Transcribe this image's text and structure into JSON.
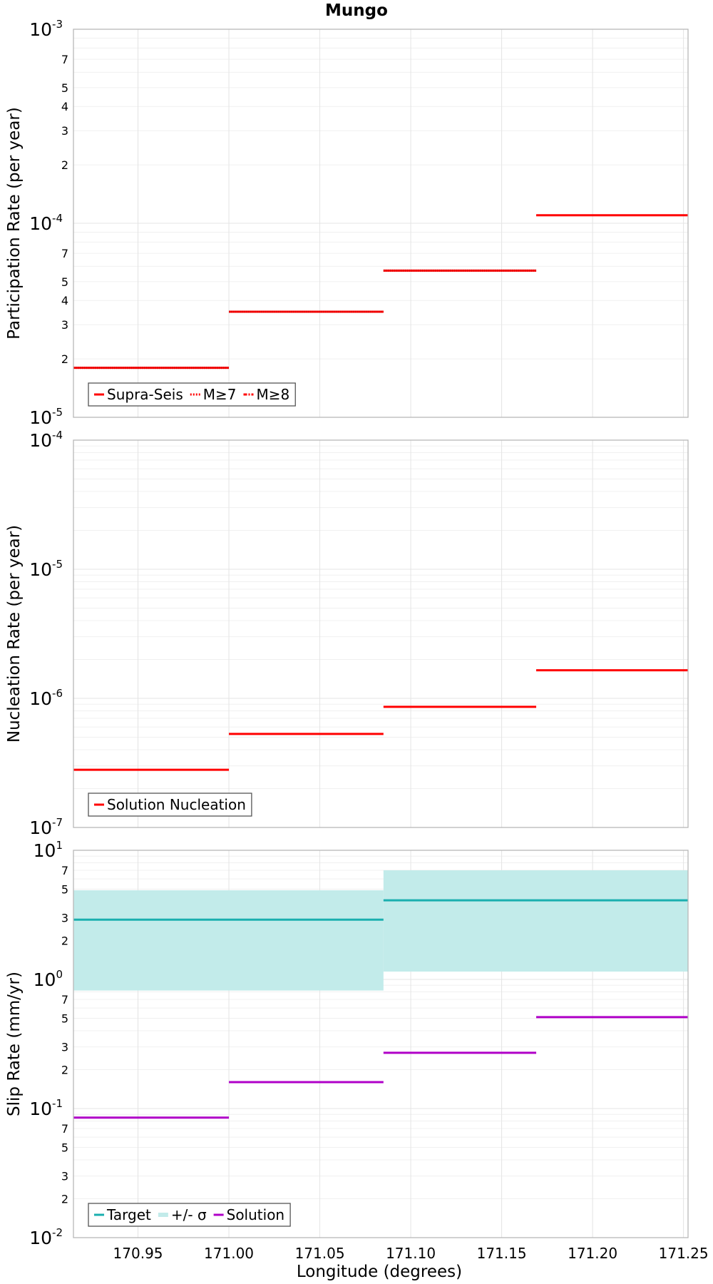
{
  "title": "Mungo",
  "xaxis": {
    "label": "Longitude (degrees)",
    "range": [
      170.9145,
      171.2525
    ],
    "ticks": [
      170.95,
      171.0,
      171.05,
      171.1,
      171.15,
      171.2,
      171.25
    ],
    "tick_labels": [
      "170.95",
      "171.00",
      "171.05",
      "171.10",
      "171.15",
      "171.20",
      "171.25"
    ]
  },
  "colors": {
    "supra_seis": "#ff0000",
    "nucleation": "#ff0000",
    "target": "#1aafaf",
    "sigma": "#c2ebea",
    "solution": "#b000c8",
    "grid": "#e4e4e4",
    "frame": "#b8b8b8"
  },
  "chart_data": [
    {
      "type": "line",
      "ylabel": "Participation Rate (per year)",
      "yscale": "log",
      "ylim": [
        1e-05,
        0.001
      ],
      "major_ticks": [
        {
          "base": "10",
          "exp": "-5",
          "value": 1e-05
        },
        {
          "base": "10",
          "exp": "-4",
          "value": 0.0001
        },
        {
          "base": "10",
          "exp": "-3",
          "value": 0.001
        }
      ],
      "minor_labels": [
        "2",
        "3",
        "4",
        "5",
        "7"
      ],
      "legend": {
        "position": "bottom-left",
        "entries": [
          {
            "label": "Supra-Seis",
            "style": "solid"
          },
          {
            "label": "M≥7",
            "style": "dotted"
          },
          {
            "label": "M≥8",
            "style": "dashdot"
          }
        ]
      },
      "series": [
        {
          "name": "Supra-Seis",
          "style": "solid",
          "steps": [
            {
              "x0": 170.9145,
              "x1": 171.0,
              "y": 1.8e-05
            },
            {
              "x0": 171.0,
              "x1": 171.085,
              "y": 3.5e-05
            },
            {
              "x0": 171.085,
              "x1": 171.169,
              "y": 5.7e-05
            },
            {
              "x0": 171.169,
              "x1": 171.2525,
              "y": 0.00011
            }
          ]
        },
        {
          "name": "M≥7",
          "style": "dotted",
          "steps": [
            {
              "x0": 170.9145,
              "x1": 171.0,
              "y": 1.8e-05
            },
            {
              "x0": 171.0,
              "x1": 171.085,
              "y": 3.5e-05
            },
            {
              "x0": 171.085,
              "x1": 171.169,
              "y": 5.7e-05
            }
          ]
        }
      ]
    },
    {
      "type": "line",
      "ylabel": "Nucleation Rate (per year)",
      "yscale": "log",
      "ylim": [
        1e-07,
        0.0001
      ],
      "major_ticks": [
        {
          "base": "10",
          "exp": "-7",
          "value": 1e-07
        },
        {
          "base": "10",
          "exp": "-6",
          "value": 1e-06
        },
        {
          "base": "10",
          "exp": "-5",
          "value": 1e-05
        },
        {
          "base": "10",
          "exp": "-4",
          "value": 0.0001
        }
      ],
      "minor_labels": [],
      "legend": {
        "position": "bottom-left",
        "entries": [
          {
            "label": "Solution Nucleation",
            "style": "solid"
          }
        ]
      },
      "series": [
        {
          "name": "Solution Nucleation",
          "style": "solid",
          "steps": [
            {
              "x0": 170.9145,
              "x1": 171.0,
              "y": 2.8e-07
            },
            {
              "x0": 171.0,
              "x1": 171.085,
              "y": 5.3e-07
            },
            {
              "x0": 171.085,
              "x1": 171.169,
              "y": 8.6e-07
            },
            {
              "x0": 171.169,
              "x1": 171.2525,
              "y": 1.65e-06
            }
          ]
        }
      ]
    },
    {
      "type": "line",
      "ylabel": "Slip Rate (mm/yr)",
      "yscale": "log",
      "ylim": [
        0.01,
        10
      ],
      "major_ticks": [
        {
          "base": "10",
          "exp": "-2",
          "value": 0.01
        },
        {
          "base": "10",
          "exp": "-1",
          "value": 0.1
        },
        {
          "base": "10",
          "exp": "0",
          "value": 1
        },
        {
          "base": "10",
          "exp": "1",
          "value": 10
        }
      ],
      "minor_labels": [
        "2",
        "3",
        "5",
        "7"
      ],
      "legend": {
        "position": "bottom-left",
        "entries": [
          {
            "label": "Target",
            "style": "solid"
          },
          {
            "label": "+/- σ",
            "style": "band"
          },
          {
            "label": "Solution",
            "style": "solid"
          }
        ]
      },
      "bands": [
        {
          "name": "+/- σ",
          "x0": 170.9145,
          "x1": 171.085,
          "low": 0.82,
          "high": 4.9
        },
        {
          "name": "+/- σ",
          "x0": 171.085,
          "x1": 171.2525,
          "low": 1.15,
          "high": 7.0
        }
      ],
      "series": [
        {
          "name": "Target",
          "style": "solid",
          "steps": [
            {
              "x0": 170.9145,
              "x1": 171.085,
              "y": 2.9
            },
            {
              "x0": 171.085,
              "x1": 171.2525,
              "y": 4.1
            }
          ]
        },
        {
          "name": "Solution",
          "style": "solid",
          "steps": [
            {
              "x0": 170.9145,
              "x1": 171.0,
              "y": 0.085
            },
            {
              "x0": 171.0,
              "x1": 171.085,
              "y": 0.16
            },
            {
              "x0": 171.085,
              "x1": 171.169,
              "y": 0.27
            },
            {
              "x0": 171.169,
              "x1": 171.2525,
              "y": 0.51
            }
          ]
        }
      ]
    }
  ]
}
